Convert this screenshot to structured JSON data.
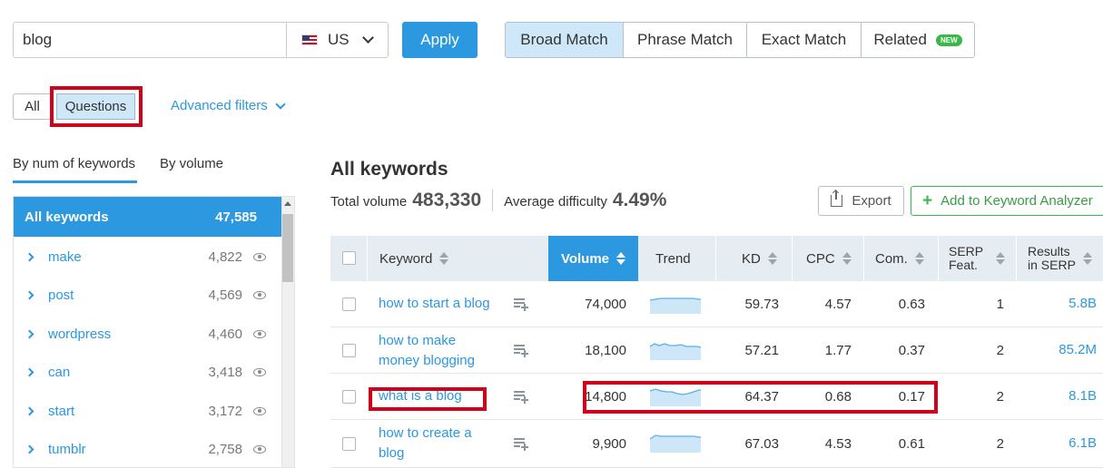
{
  "search": {
    "value": "blog",
    "database": "US"
  },
  "apply_label": "Apply",
  "match_tabs": [
    {
      "label": "Broad Match",
      "active": true
    },
    {
      "label": "Phrase Match",
      "active": false
    },
    {
      "label": "Exact Match",
      "active": false
    },
    {
      "label": "Related",
      "active": false,
      "badge": "NEW"
    }
  ],
  "filters": {
    "all": "All",
    "questions": "Questions",
    "advanced": "Advanced filters"
  },
  "group_tabs": {
    "by_num": "By num of keywords",
    "by_volume": "By volume"
  },
  "groups": {
    "all": {
      "label": "All keywords",
      "count": "47,585"
    },
    "items": [
      {
        "label": "make",
        "count": "4,822"
      },
      {
        "label": "post",
        "count": "4,569"
      },
      {
        "label": "wordpress",
        "count": "4,460"
      },
      {
        "label": "can",
        "count": "3,418"
      },
      {
        "label": "start",
        "count": "3,172"
      },
      {
        "label": "tumblr",
        "count": "2,758"
      }
    ]
  },
  "main": {
    "title": "All keywords",
    "total_volume_label": "Total volume",
    "total_volume": "483,330",
    "avg_difficulty_label": "Average difficulty",
    "avg_difficulty": "4.49%",
    "export_label": "Export",
    "add_label": "Add to Keyword Analyzer"
  },
  "columns": {
    "keyword": "Keyword",
    "volume": "Volume",
    "trend": "Trend",
    "kd": "KD",
    "cpc": "CPC",
    "com": "Com.",
    "serp_1": "SERP",
    "serp_2": "Feat.",
    "results_1": "Results",
    "results_2": "in SERP"
  },
  "rows": [
    {
      "kw1": "how to start a blog",
      "kw2": "",
      "volume": "74,000",
      "kd": "59.73",
      "cpc": "4.57",
      "com": "0.63",
      "serp": "1",
      "results": "5.8B"
    },
    {
      "kw1": "how to make",
      "kw2": "money blogging",
      "volume": "18,100",
      "kd": "57.21",
      "cpc": "1.77",
      "com": "0.37",
      "serp": "2",
      "results": "85.2M"
    },
    {
      "kw1": "what is a blog",
      "kw2": "",
      "volume": "14,800",
      "kd": "64.37",
      "cpc": "0.68",
      "com": "0.17",
      "serp": "2",
      "results": "8.1B"
    },
    {
      "kw1": "how to create a",
      "kw2": "blog",
      "volume": "9,900",
      "kd": "67.03",
      "cpc": "4.53",
      "com": "0.61",
      "serp": "2",
      "results": "6.1B"
    }
  ],
  "colors": {
    "accent": "#2b98e0",
    "highlight": "#d0021b",
    "green": "#3bb84a"
  },
  "icons": [
    "us-flag-icon",
    "chevron-down-icon",
    "eye-icon",
    "export-icon",
    "plus-icon",
    "add-to-list-icon",
    "sort-icon"
  ]
}
